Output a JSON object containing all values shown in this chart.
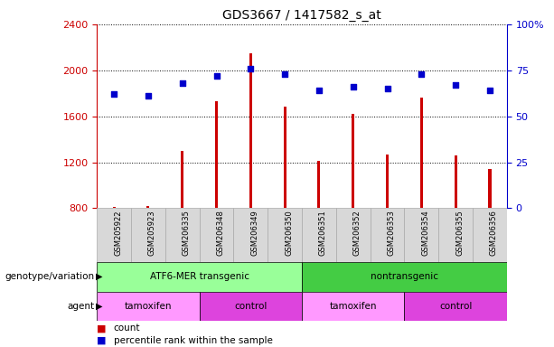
{
  "title": "GDS3667 / 1417582_s_at",
  "samples": [
    "GSM205922",
    "GSM205923",
    "GSM206335",
    "GSM206348",
    "GSM206349",
    "GSM206350",
    "GSM206351",
    "GSM206352",
    "GSM206353",
    "GSM206354",
    "GSM206355",
    "GSM206356"
  ],
  "counts": [
    810,
    820,
    1300,
    1730,
    2150,
    1680,
    1210,
    1620,
    1270,
    1760,
    1260,
    1140
  ],
  "percentiles": [
    62,
    61,
    68,
    72,
    76,
    73,
    64,
    66,
    65,
    73,
    67,
    64
  ],
  "ylim_left": [
    800,
    2400
  ],
  "ylim_right": [
    0,
    100
  ],
  "yticks_left": [
    800,
    1200,
    1600,
    2000,
    2400
  ],
  "yticks_right": [
    0,
    25,
    50,
    75,
    100
  ],
  "bar_color": "#cc0000",
  "dot_color": "#0000cc",
  "bar_bottom": 800,
  "bar_width": 0.08,
  "genotype_groups": [
    {
      "label": "ATF6-MER transgenic",
      "start": 0,
      "end": 6,
      "color": "#99ff99"
    },
    {
      "label": "nontransgenic",
      "start": 6,
      "end": 12,
      "color": "#44cc44"
    }
  ],
  "agent_groups": [
    {
      "label": "tamoxifen",
      "start": 0,
      "end": 3,
      "color": "#ff99ff"
    },
    {
      "label": "control",
      "start": 3,
      "end": 6,
      "color": "#dd44dd"
    },
    {
      "label": "tamoxifen",
      "start": 6,
      "end": 9,
      "color": "#ff99ff"
    },
    {
      "label": "control",
      "start": 9,
      "end": 12,
      "color": "#dd44dd"
    }
  ],
  "legend_count_label": "count",
  "legend_pct_label": "percentile rank within the sample",
  "genotype_row_label": "genotype/variation",
  "agent_row_label": "agent",
  "background_color": "#ffffff",
  "left_axis_color": "#cc0000",
  "right_axis_color": "#0000cc",
  "col_bg_color": "#d8d8d8",
  "col_border_color": "#aaaaaa"
}
